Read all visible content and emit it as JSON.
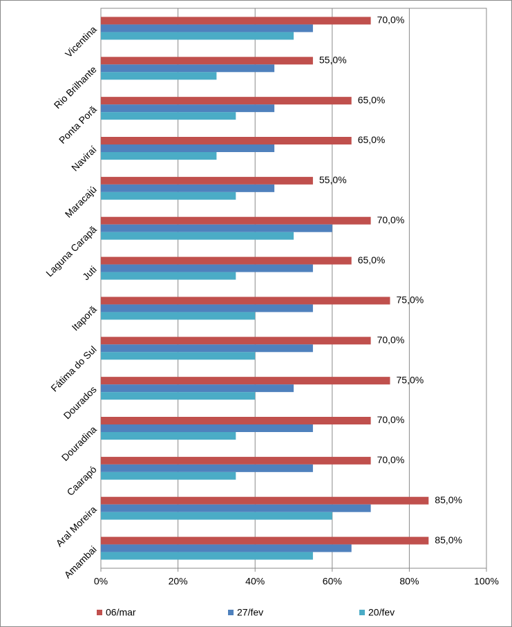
{
  "chart_data": {
    "type": "bar",
    "orientation": "horizontal",
    "categories": [
      "Vicentina",
      "Rio Brilhante",
      "Ponta Porã",
      "Naviraí",
      "Maracajú",
      "Laguna Carapã",
      "Juti",
      "Itaporã",
      "Fátima do Sul",
      "Dourados",
      "Douradina",
      "Caarapó",
      "Aral Moreira",
      "Amambai"
    ],
    "series": [
      {
        "name": "06/mar",
        "color": "#c0504d",
        "values": [
          70,
          55,
          65,
          65,
          55,
          70,
          65,
          75,
          70,
          75,
          70,
          70,
          85,
          85
        ],
        "value_labels": [
          "70,0%",
          "55,0%",
          "65,0%",
          "65,0%",
          "55,0%",
          "70,0%",
          "65,0%",
          "75,0%",
          "70,0%",
          "75,0%",
          "70,0%",
          "70,0%",
          "85,0%",
          "85,0%"
        ]
      },
      {
        "name": "27/fev",
        "color": "#4f81bd",
        "values": [
          55,
          45,
          45,
          45,
          45,
          60,
          55,
          55,
          55,
          50,
          55,
          55,
          70,
          65
        ]
      },
      {
        "name": "20/fev",
        "color": "#4bacc6",
        "values": [
          50,
          30,
          35,
          30,
          35,
          50,
          35,
          40,
          40,
          40,
          35,
          35,
          60,
          55
        ]
      }
    ],
    "xlim": [
      0,
      100
    ],
    "xticks": [
      {
        "value": 0,
        "label": "0%"
      },
      {
        "value": 20,
        "label": "20%"
      },
      {
        "value": 40,
        "label": "40%"
      },
      {
        "value": 60,
        "label": "60%"
      },
      {
        "value": 80,
        "label": "80%"
      },
      {
        "value": 100,
        "label": "100%"
      }
    ],
    "grid": true,
    "legend": "bottom"
  }
}
